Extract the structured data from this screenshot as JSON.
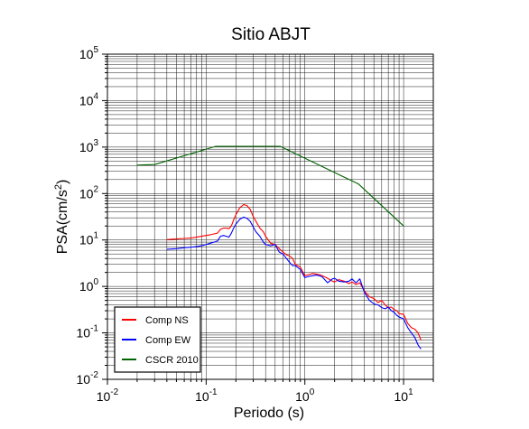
{
  "chart_data": {
    "type": "line",
    "title": "Sitio ABJT",
    "xlabel": "Periodo (s)",
    "ylabel_base": "PSA(cm/s",
    "ylabel_exp": "2",
    "ylabel_tail": ")",
    "x_scale": "log",
    "y_scale": "log",
    "xlim": [
      0.01,
      20
    ],
    "ylim": [
      0.01,
      100000
    ],
    "grid": true,
    "legend_position": "bottom-left",
    "x_ticks": [
      {
        "value": 0.01,
        "base": "10",
        "exp": "-2"
      },
      {
        "value": 0.1,
        "base": "10",
        "exp": "-1"
      },
      {
        "value": 1,
        "base": "10",
        "exp": "0"
      },
      {
        "value": 10,
        "base": "10",
        "exp": "1"
      }
    ],
    "y_ticks": [
      {
        "value": 0.01,
        "base": "10",
        "exp": "-2"
      },
      {
        "value": 0.1,
        "base": "10",
        "exp": "-1"
      },
      {
        "value": 1,
        "base": "10",
        "exp": "0"
      },
      {
        "value": 10,
        "base": "10",
        "exp": "1"
      },
      {
        "value": 100,
        "base": "10",
        "exp": "2"
      },
      {
        "value": 1000,
        "base": "10",
        "exp": "3"
      },
      {
        "value": 10000,
        "base": "10",
        "exp": "4"
      },
      {
        "value": 100000,
        "base": "10",
        "exp": "5"
      }
    ],
    "series": [
      {
        "name": "Comp NS",
        "color": "#ff0000",
        "x": [
          0.04,
          0.05,
          0.06,
          0.07,
          0.08,
          0.09,
          0.1,
          0.11,
          0.12,
          0.13,
          0.14,
          0.15,
          0.16,
          0.17,
          0.18,
          0.19,
          0.2,
          0.22,
          0.24,
          0.26,
          0.28,
          0.3,
          0.32,
          0.35,
          0.38,
          0.4,
          0.45,
          0.5,
          0.55,
          0.6,
          0.65,
          0.7,
          0.75,
          0.8,
          0.9,
          1.0,
          1.1,
          1.2,
          1.3,
          1.4,
          1.5,
          1.7,
          1.9,
          2.0,
          2.2,
          2.5,
          2.8,
          3.0,
          3.3,
          3.6,
          4.0,
          4.5,
          5.0,
          5.5,
          6.0,
          6.5,
          7.0,
          7.5,
          8.0,
          8.5,
          9.0,
          10.0,
          11.0,
          12.0,
          13.0,
          14.0,
          15.0
        ],
        "y": [
          10.2,
          10.5,
          10.8,
          11,
          11.5,
          12,
          12.5,
          13,
          13.5,
          14,
          17,
          18,
          18,
          17.5,
          20,
          27,
          35,
          50,
          58,
          55,
          45,
          32,
          25,
          18,
          15,
          12,
          8.5,
          8,
          6.5,
          5.5,
          4.8,
          4.5,
          4.0,
          3.0,
          2.6,
          1.7,
          1.8,
          1.9,
          1.85,
          1.8,
          1.7,
          1.5,
          1.3,
          1.25,
          1.4,
          1.3,
          1.15,
          1.25,
          1.1,
          1.2,
          0.8,
          0.6,
          0.55,
          0.45,
          0.5,
          0.4,
          0.35,
          0.36,
          0.32,
          0.3,
          0.26,
          0.25,
          0.16,
          0.13,
          0.12,
          0.1,
          0.07
        ]
      },
      {
        "name": "Comp EW",
        "color": "#0000ff",
        "x": [
          0.04,
          0.05,
          0.06,
          0.07,
          0.08,
          0.09,
          0.1,
          0.11,
          0.12,
          0.13,
          0.14,
          0.15,
          0.16,
          0.17,
          0.18,
          0.19,
          0.2,
          0.22,
          0.24,
          0.26,
          0.28,
          0.3,
          0.32,
          0.35,
          0.38,
          0.4,
          0.45,
          0.5,
          0.55,
          0.6,
          0.65,
          0.7,
          0.75,
          0.8,
          0.9,
          1.0,
          1.1,
          1.2,
          1.3,
          1.4,
          1.5,
          1.7,
          1.9,
          2.0,
          2.2,
          2.5,
          2.8,
          3.0,
          3.3,
          3.6,
          4.0,
          4.5,
          5.0,
          5.5,
          6.0,
          6.5,
          7.0,
          7.5,
          8.0,
          8.5,
          9.0,
          10.0,
          11.0,
          12.0,
          13.0,
          14.0,
          15.0
        ],
        "y": [
          6.3,
          6.5,
          6.8,
          7,
          7.2,
          7.5,
          8,
          8.5,
          9,
          9.5,
          12,
          12.5,
          12,
          11.5,
          14,
          18,
          22,
          28,
          31,
          29,
          25,
          19,
          15,
          12,
          9,
          8,
          7.5,
          8,
          5.5,
          5.0,
          4.0,
          3.3,
          2.8,
          2.8,
          2.3,
          1.55,
          1.65,
          1.7,
          1.75,
          1.7,
          1.6,
          1.2,
          1.45,
          1.5,
          1.3,
          1.25,
          1.3,
          1.45,
          1.2,
          1.45,
          0.75,
          0.5,
          0.42,
          0.4,
          0.35,
          0.33,
          0.36,
          0.3,
          0.28,
          0.24,
          0.22,
          0.2,
          0.13,
          0.1,
          0.08,
          0.055,
          0.045
        ]
      },
      {
        "name": "CSCR 2010",
        "color": "#006400",
        "x": [
          0.02,
          0.03,
          0.125,
          0.5625,
          3.5,
          10
        ],
        "y": [
          410,
          420,
          1040,
          1040,
          160,
          20
        ]
      }
    ]
  }
}
